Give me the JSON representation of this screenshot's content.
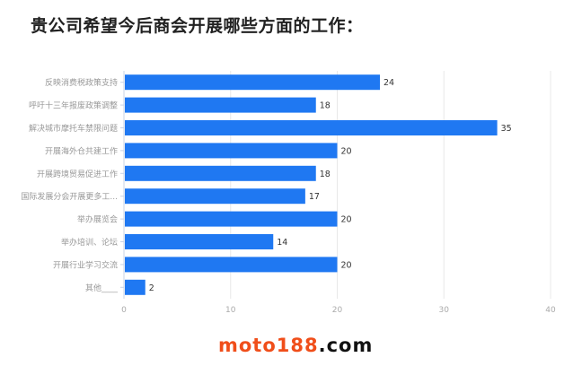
{
  "chart_data": {
    "type": "bar",
    "orientation": "horizontal",
    "title": "贵公司希望今后商会开展哪些方面的工作：",
    "categories": [
      "反映消费税政策支持",
      "呼吁十三年报废政策调整",
      "解决城市摩托车禁限问题",
      "开展海外仓共建工作",
      "开展跨境贸易促进工作",
      "国际发展分会开展更多工...",
      "举办展览会",
      "举办培训、论坛",
      "开展行业学习交流",
      "其他____"
    ],
    "values": [
      24,
      18,
      35,
      20,
      18,
      17,
      20,
      14,
      20,
      2
    ],
    "xlim": [
      0,
      40
    ],
    "xticks": [
      0,
      10,
      20,
      30,
      40
    ],
    "grid": true,
    "bar_color": "#1f78f2",
    "data_labels": true
  },
  "watermark": {
    "part1": "moto188",
    "part2": ".com"
  }
}
